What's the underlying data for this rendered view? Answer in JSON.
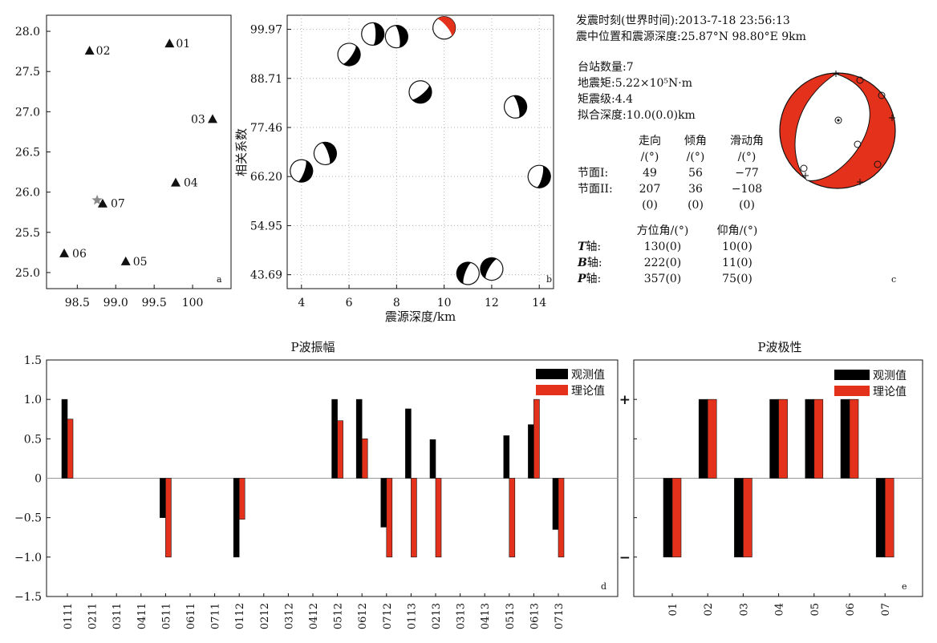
{
  "panel_a": {
    "letter": "a",
    "chart_data": {
      "type": "scatter",
      "title": "",
      "xlabel": "",
      "ylabel": "",
      "xlim": [
        98.1,
        100.5
      ],
      "ylim": [
        24.8,
        28.2
      ],
      "xticks": [
        98.5,
        99.0,
        99.5,
        100.0
      ],
      "xtick_labels": [
        "98.5",
        "99.0",
        "99.5",
        "100"
      ],
      "yticks": [
        25.0,
        25.5,
        26.0,
        26.5,
        27.0,
        27.5,
        28.0
      ],
      "ytick_labels": [
        "25.0",
        "25.5",
        "26.0",
        "26.5",
        "27.0",
        "27.5",
        "28.0"
      ],
      "points": [
        {
          "label": "01",
          "x": 99.7,
          "y": 27.85,
          "marker": "black-triangle"
        },
        {
          "label": "02",
          "x": 98.66,
          "y": 27.76,
          "marker": "black-triangle"
        },
        {
          "label": "03",
          "x": 100.26,
          "y": 26.91,
          "marker": "black-triangle"
        },
        {
          "label": "04",
          "x": 99.78,
          "y": 26.12,
          "marker": "black-triangle"
        },
        {
          "label": "07",
          "x": 98.83,
          "y": 25.86,
          "marker": "black-triangle"
        },
        {
          "label": "06",
          "x": 98.33,
          "y": 25.24,
          "marker": "black-triangle"
        },
        {
          "label": "05",
          "x": 99.13,
          "y": 25.14,
          "marker": "black-triangle"
        }
      ],
      "epicenter": {
        "x": 98.8,
        "y": 25.87,
        "marker": "grey-star"
      }
    }
  },
  "panel_b": {
    "letter": "b",
    "chart_data": {
      "type": "scatter",
      "title": "",
      "xlabel": "震源深度/km",
      "ylabel": "相关系数",
      "xlim": [
        3.4,
        14.6
      ],
      "ylim": [
        40.5,
        103.2
      ],
      "xticks": [
        4,
        6,
        8,
        10,
        12,
        14
      ],
      "yticks": [
        43.69,
        54.95,
        66.2,
        77.46,
        88.71,
        99.97
      ],
      "ytick_labels": [
        "43.69",
        "54.95",
        "66.20",
        "77.46",
        "88.71",
        "99.97"
      ],
      "grid": true,
      "points": [
        {
          "x": 4,
          "y": 67.5,
          "color": "#000000"
        },
        {
          "x": 5,
          "y": 71.5,
          "color": "#000000"
        },
        {
          "x": 6,
          "y": 94.2,
          "color": "#000000"
        },
        {
          "x": 7,
          "y": 98.9,
          "color": "#000000"
        },
        {
          "x": 8,
          "y": 98.3,
          "color": "#000000"
        },
        {
          "x": 9,
          "y": 85.6,
          "color": "#000000"
        },
        {
          "x": 10,
          "y": 100.3,
          "color": "#e3311b"
        },
        {
          "x": 11,
          "y": 44.0,
          "color": "#000000"
        },
        {
          "x": 12,
          "y": 45.0,
          "color": "#000000"
        },
        {
          "x": 13,
          "y": 82.2,
          "color": "#000000"
        },
        {
          "x": 14,
          "y": 66.2,
          "color": "#000000"
        }
      ]
    }
  },
  "info": {
    "line1": "发震时刻(世界时间):2013-7-18 23:56:13",
    "line2": "震中位置和震源深度:25.87°N 98.80°E 9km",
    "stations": "台站数量:7",
    "moment": "地震矩:5.22×10⁵N·m",
    "magnitude": "矩震级:4.4",
    "depth": "拟合深度:10.0(0.0)km",
    "np_headers": [
      "走向",
      "倾角",
      "滑动角"
    ],
    "np_units": [
      "/(°)",
      "/(°)",
      "/(°)"
    ],
    "np1": {
      "label": "节面I:",
      "values": [
        "49",
        "56",
        "−77"
      ]
    },
    "np2": {
      "label": "节面II:",
      "values": [
        "207",
        "36",
        "−108"
      ]
    },
    "np_err": [
      "(0)",
      "(0)",
      "(0)"
    ],
    "axis_headers": [
      "方位角/(°)",
      "仰角/(°)"
    ],
    "axes": [
      {
        "name": "T",
        "suffix": "轴:",
        "az": "130(0)",
        "pl": "10(0)"
      },
      {
        "name": "B",
        "suffix": "轴:",
        "az": "222(0)",
        "pl": "11(0)"
      },
      {
        "name": "P",
        "suffix": "轴:",
        "az": "357(0)",
        "pl": "75(0)"
      }
    ]
  },
  "panel_c": {
    "letter": "c",
    "beachball": {
      "fill": "#e3311b",
      "strike": 49,
      "dip": 56,
      "rake": -77
    }
  },
  "panel_d": {
    "letter": "d",
    "chart_data": {
      "type": "bar",
      "title": "P波振幅",
      "xlabel": "",
      "ylabel": "",
      "ylim": [
        -1.5,
        1.5
      ],
      "yticks": [
        -1.5,
        -1.0,
        -0.5,
        0,
        0.5,
        1.0,
        1.5
      ],
      "ytick_labels": [
        "−1.5",
        "−1.0",
        "−0.5",
        "0",
        "0.5",
        "1.0",
        "1.5"
      ],
      "categories": [
        "0111",
        "0211",
        "0311",
        "0411",
        "0511",
        "0611",
        "0711",
        "0112",
        "0212",
        "0312",
        "0412",
        "0512",
        "0612",
        "0712",
        "0113",
        "0213",
        "0313",
        "0413",
        "0513",
        "0613",
        "0713"
      ],
      "series": [
        {
          "name": "观测值",
          "color": "#000000",
          "values": [
            1.0,
            0,
            0,
            0,
            -0.5,
            0,
            0,
            -1.0,
            0,
            0,
            0,
            1.0,
            1.0,
            -0.62,
            0.88,
            0.49,
            0,
            0,
            0.54,
            0.68,
            -0.65
          ]
        },
        {
          "name": "理论值",
          "color": "#e3311b",
          "values": [
            0.75,
            0,
            0,
            0,
            -1.0,
            0,
            0,
            -0.52,
            0,
            0,
            0,
            0.73,
            0.5,
            -1.0,
            -1.0,
            -1.0,
            0,
            0,
            -1.0,
            1.0,
            -1.0
          ]
        }
      ],
      "legend": "top-right"
    }
  },
  "panel_e": {
    "letter": "e",
    "chart_data": {
      "type": "bar",
      "title": "P波极性",
      "xlabel": "",
      "ylabel": "",
      "ylim": [
        -1.5,
        1.5
      ],
      "ytick_labels": [
        "+",
        "−"
      ],
      "categories": [
        "01",
        "02",
        "03",
        "04",
        "05",
        "06",
        "07"
      ],
      "series": [
        {
          "name": "观测值",
          "color": "#000000",
          "values": [
            -1,
            1,
            -1,
            1,
            1,
            1,
            -1
          ]
        },
        {
          "name": "理论值",
          "color": "#e3311b",
          "values": [
            -1,
            1,
            -1,
            1,
            1,
            1,
            -1
          ]
        }
      ],
      "legend": "top-right"
    }
  }
}
